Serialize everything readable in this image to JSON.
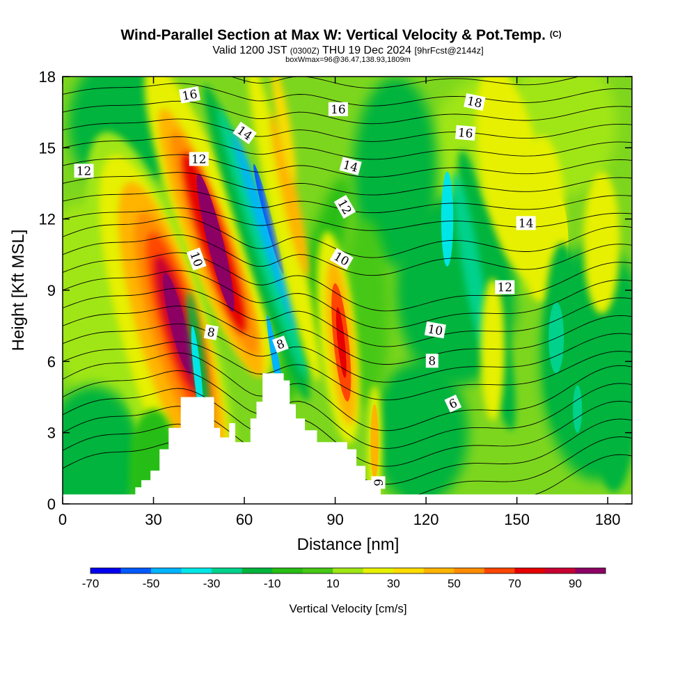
{
  "title": "Wind-Parallel Section at Max W: Vertical Velocity & Pot.Temp.",
  "title_mark": "(C)",
  "subtitle_valid": "Valid 1200 JST",
  "subtitle_utc": "(0300Z)",
  "subtitle_date": "THU 19 Dec 2024",
  "subtitle_fcst": "[9hrFcst@2144z]",
  "box_info": "boxWmax=96@36.47,138.93,1809m",
  "chart_data": {
    "type": "heatmap",
    "xlabel": "Distance [nm]",
    "ylabel": "Height [Kft MSL]",
    "xlim": [
      0,
      188
    ],
    "ylim": [
      0,
      18
    ],
    "xticks": [
      0,
      30,
      60,
      90,
      120,
      150,
      180
    ],
    "yticks": [
      0,
      3,
      6,
      9,
      12,
      15,
      18
    ],
    "colorbar": {
      "label": "Vertical Velocity [cm/s]",
      "tick_labels": [
        -70,
        -50,
        -30,
        -10,
        10,
        30,
        50,
        70,
        90
      ],
      "levels": [
        -70,
        -60,
        -50,
        -40,
        -30,
        -20,
        -10,
        0,
        10,
        20,
        30,
        40,
        50,
        60,
        70,
        80,
        90,
        100
      ],
      "colors": [
        "#0000f0",
        "#005aff",
        "#00b4ff",
        "#00e6e6",
        "#00d28c",
        "#00b43c",
        "#28be14",
        "#46c814",
        "#a0e614",
        "#e6f000",
        "#ffdc00",
        "#ffb400",
        "#ff8c00",
        "#ff4600",
        "#e60000",
        "#c80032",
        "#8c0064"
      ]
    },
    "velocity_features": [
      {
        "name": "updraft core",
        "x_center": 38,
        "height_kft": [
          4,
          12
        ],
        "peak_cm_s": 96
      },
      {
        "name": "updraft",
        "x_center": 50,
        "height_kft": [
          5,
          17
        ],
        "peak_cm_s": 90
      },
      {
        "name": "downdraft",
        "x_center": 68,
        "height_kft": [
          4,
          16
        ],
        "peak_cm_s": -55
      },
      {
        "name": "updraft",
        "x_center": 75,
        "height_kft": [
          5,
          18
        ],
        "peak_cm_s": 50
      },
      {
        "name": "updraft",
        "x_center": 92,
        "height_kft": [
          3,
          11
        ],
        "peak_cm_s": 70
      },
      {
        "name": "updraft",
        "x_center": 103,
        "height_kft": [
          0.5,
          5
        ],
        "peak_cm_s": 40
      },
      {
        "name": "updraft",
        "x_center": 158,
        "height_kft": [
          8,
          16
        ],
        "peak_cm_s": 28
      }
    ],
    "potential_temperature_contours": {
      "label_values": [
        6,
        8,
        10,
        12,
        14,
        16,
        18
      ]
    },
    "terrain_profile_kft": [
      [
        0,
        0.4
      ],
      [
        22,
        0.4
      ],
      [
        24,
        0.7
      ],
      [
        26,
        1.0
      ],
      [
        29,
        1.4
      ],
      [
        32,
        2.3
      ],
      [
        35,
        3.2
      ],
      [
        39,
        4.5
      ],
      [
        43,
        4.5
      ],
      [
        49,
        4.5
      ],
      [
        50,
        3.2
      ],
      [
        52,
        2.8
      ],
      [
        54,
        2.8
      ],
      [
        55,
        3.4
      ],
      [
        56,
        3.4
      ],
      [
        57,
        2.6
      ],
      [
        60,
        2.6
      ],
      [
        62,
        3.6
      ],
      [
        64,
        4.3
      ],
      [
        66,
        5.5
      ],
      [
        71,
        5.5
      ],
      [
        73,
        5.2
      ],
      [
        75,
        4.2
      ],
      [
        77,
        3.6
      ],
      [
        80,
        3.1
      ],
      [
        84,
        2.6
      ],
      [
        92,
        2.6
      ],
      [
        94,
        2.3
      ],
      [
        97,
        1.6
      ],
      [
        100,
        1.0
      ],
      [
        103,
        0.7
      ],
      [
        105,
        0.4
      ],
      [
        188,
        0.4
      ]
    ]
  }
}
